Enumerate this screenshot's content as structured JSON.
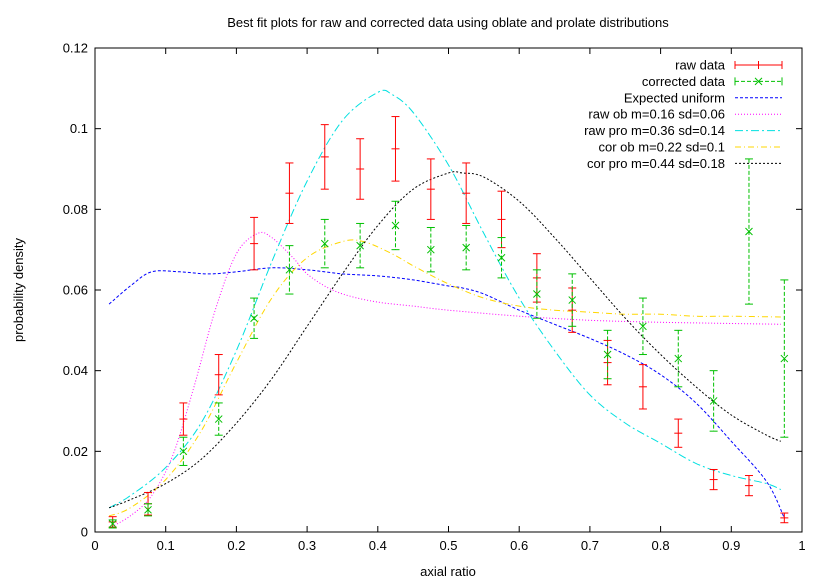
{
  "chart_data": {
    "type": "line",
    "title": "Best fit plots for raw and corrected data using oblate and prolate distributions",
    "xlabel": "axial ratio",
    "ylabel": "probability density",
    "xlim": [
      0,
      1
    ],
    "ylim": [
      0,
      0.12
    ],
    "xticks": [
      "0",
      "0.1",
      "0.2",
      "0.3",
      "0.4",
      "0.5",
      "0.6",
      "0.7",
      "0.8",
      "0.9",
      "1"
    ],
    "yticks": [
      "0",
      "0.02",
      "0.04",
      "0.06",
      "0.08",
      "0.1",
      "0.12"
    ],
    "legend_position": "top-right",
    "grid": false,
    "errorbar_series": [
      {
        "name": "raw data",
        "color": "#ff0000",
        "marker": "plus",
        "x": [
          0.025,
          0.075,
          0.125,
          0.175,
          0.225,
          0.275,
          0.325,
          0.375,
          0.425,
          0.475,
          0.525,
          0.575,
          0.625,
          0.675,
          0.725,
          0.775,
          0.825,
          0.875,
          0.925,
          0.975
        ],
        "y": [
          0.0025,
          0.007,
          0.028,
          0.039,
          0.0715,
          0.084,
          0.093,
          0.09,
          0.095,
          0.085,
          0.084,
          0.0775,
          0.063,
          0.055,
          0.042,
          0.036,
          0.0245,
          0.013,
          0.0115,
          0.0035
        ],
        "err": [
          0.0013,
          0.0028,
          0.004,
          0.005,
          0.0065,
          0.0075,
          0.008,
          0.0075,
          0.008,
          0.0075,
          0.0075,
          0.007,
          0.006,
          0.0055,
          0.0055,
          0.0055,
          0.0035,
          0.0025,
          0.0025,
          0.0012
        ]
      },
      {
        "name": "corrected data",
        "color": "#00c000",
        "marker": "cross",
        "x": [
          0.025,
          0.075,
          0.125,
          0.175,
          0.225,
          0.275,
          0.325,
          0.375,
          0.425,
          0.475,
          0.525,
          0.575,
          0.625,
          0.675,
          0.725,
          0.775,
          0.825,
          0.875,
          0.925,
          0.975
        ],
        "y": [
          0.002,
          0.0055,
          0.02,
          0.028,
          0.053,
          0.065,
          0.0715,
          0.071,
          0.076,
          0.07,
          0.0705,
          0.068,
          0.059,
          0.0575,
          0.044,
          0.051,
          0.043,
          0.0325,
          0.0745,
          0.043
        ],
        "err": [
          0.001,
          0.0015,
          0.0035,
          0.004,
          0.005,
          0.006,
          0.006,
          0.0055,
          0.006,
          0.0055,
          0.0055,
          0.005,
          0.006,
          0.0065,
          0.006,
          0.007,
          0.007,
          0.0075,
          0.018,
          0.0195
        ]
      }
    ],
    "line_series": [
      {
        "name": "Expected uniform",
        "color": "#0000ff",
        "dash": "3,2",
        "x": [
          0.02,
          0.05,
          0.08,
          0.12,
          0.16,
          0.2,
          0.25,
          0.3,
          0.35,
          0.4,
          0.45,
          0.5,
          0.52,
          0.55,
          0.6,
          0.65,
          0.7,
          0.75,
          0.8,
          0.85,
          0.9,
          0.95,
          0.975
        ],
        "y": [
          0.0565,
          0.061,
          0.0645,
          0.0645,
          0.064,
          0.0645,
          0.0655,
          0.065,
          0.064,
          0.0635,
          0.0625,
          0.061,
          0.0605,
          0.059,
          0.055,
          0.0515,
          0.048,
          0.044,
          0.039,
          0.032,
          0.0225,
          0.0125,
          0.0035
        ]
      },
      {
        "name": "raw ob m=0.16 sd=0.06",
        "color": "#ff00ff",
        "dash": "1,2",
        "x": [
          0.02,
          0.05,
          0.08,
          0.11,
          0.14,
          0.17,
          0.2,
          0.23,
          0.25,
          0.28,
          0.3,
          0.33,
          0.36,
          0.4,
          0.45,
          0.5,
          0.6,
          0.7,
          0.8,
          0.9,
          0.97
        ],
        "y": [
          0.001,
          0.004,
          0.009,
          0.019,
          0.036,
          0.055,
          0.069,
          0.074,
          0.073,
          0.068,
          0.064,
          0.0605,
          0.0585,
          0.057,
          0.056,
          0.055,
          0.0535,
          0.0525,
          0.052,
          0.0517,
          0.0515
        ]
      },
      {
        "name": "raw pro m=0.36 sd=0.14",
        "color": "#00e0e0",
        "dash": "8,3,2,3",
        "x": [
          0.02,
          0.05,
          0.1,
          0.15,
          0.2,
          0.25,
          0.3,
          0.35,
          0.4,
          0.42,
          0.45,
          0.5,
          0.55,
          0.6,
          0.65,
          0.7,
          0.75,
          0.8,
          0.85,
          0.9,
          0.95,
          0.97
        ],
        "y": [
          0.006,
          0.009,
          0.016,
          0.027,
          0.045,
          0.067,
          0.087,
          0.102,
          0.109,
          0.1085,
          0.104,
          0.091,
          0.074,
          0.058,
          0.045,
          0.034,
          0.027,
          0.022,
          0.017,
          0.014,
          0.012,
          0.0105
        ]
      },
      {
        "name": "cor ob m=0.22 sd=0.1",
        "color": "#ffd700",
        "dash": "6,3,1,3",
        "x": [
          0.02,
          0.05,
          0.1,
          0.15,
          0.2,
          0.25,
          0.3,
          0.35,
          0.38,
          0.42,
          0.45,
          0.5,
          0.55,
          0.6,
          0.65,
          0.7,
          0.75,
          0.8,
          0.85,
          0.9,
          0.97
        ],
        "y": [
          0.004,
          0.006,
          0.013,
          0.025,
          0.042,
          0.058,
          0.068,
          0.072,
          0.072,
          0.069,
          0.066,
          0.0615,
          0.058,
          0.056,
          0.055,
          0.0545,
          0.054,
          0.054,
          0.0535,
          0.0535,
          0.0533
        ]
      },
      {
        "name": "cor pro m=0.44 sd=0.18",
        "color": "#000000",
        "dash": "2,2",
        "x": [
          0.02,
          0.05,
          0.1,
          0.15,
          0.2,
          0.25,
          0.3,
          0.35,
          0.4,
          0.45,
          0.5,
          0.52,
          0.55,
          0.6,
          0.65,
          0.7,
          0.75,
          0.8,
          0.85,
          0.9,
          0.95,
          0.97
        ],
        "y": [
          0.006,
          0.008,
          0.012,
          0.018,
          0.027,
          0.038,
          0.051,
          0.064,
          0.076,
          0.085,
          0.089,
          0.089,
          0.088,
          0.082,
          0.073,
          0.063,
          0.053,
          0.044,
          0.036,
          0.029,
          0.024,
          0.0225
        ]
      }
    ]
  }
}
